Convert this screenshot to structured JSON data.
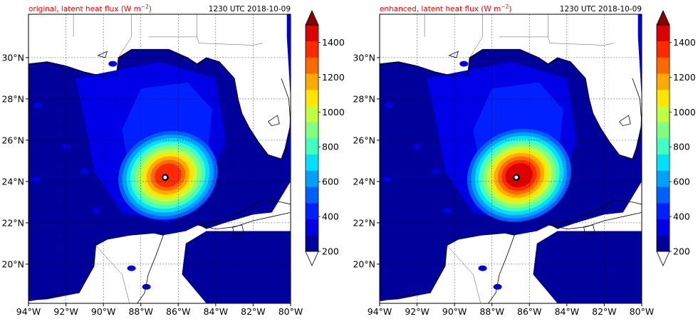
{
  "panels": [
    {
      "id": "original",
      "title_left": "original, latent heat flux (W m",
      "title_unit_exp": "−2",
      "title_close": ")",
      "title_right": "1230 UTC 2018-10-09",
      "intensity": 0.82
    },
    {
      "id": "enhanced",
      "title_left": "enhanced, latent heat flux (W m",
      "title_unit_exp": "−2",
      "title_close": ")",
      "title_right": "1230 UTC 2018-10-09",
      "intensity": 1.0
    }
  ],
  "map": {
    "lon_ticks": [
      "94°W",
      "92°W",
      "90°W",
      "88°W",
      "86°W",
      "84°W",
      "82°W",
      "80°W"
    ],
    "lat_ticks": [
      "30°N",
      "28°N",
      "26°N",
      "24°N",
      "22°N",
      "20°N"
    ],
    "lon_range": [
      -94,
      -80
    ],
    "lat_range": [
      18.1,
      32.1
    ],
    "storm_center": {
      "lon": -86.7,
      "lat": 24.2
    }
  },
  "colorbar": {
    "levels": [
      200,
      300,
      400,
      500,
      600,
      700,
      800,
      900,
      1000,
      1100,
      1200,
      1300,
      1400,
      1500
    ],
    "tick_labels": [
      "200",
      "400",
      "600",
      "800",
      "1000",
      "1200",
      "1400"
    ],
    "colors": [
      "#00009a",
      "#0000e6",
      "#0020ff",
      "#0060ff",
      "#00a0ff",
      "#00e0ff",
      "#40ffc0",
      "#80ff80",
      "#c0ff40",
      "#ffe600",
      "#ffaa00",
      "#ff6a00",
      "#ff2a00",
      "#dc0000"
    ],
    "over_color": "#8b0000",
    "under_color": "#ffffff"
  },
  "colors": {
    "title_left": "#ff0000",
    "title_right": "#000000"
  }
}
